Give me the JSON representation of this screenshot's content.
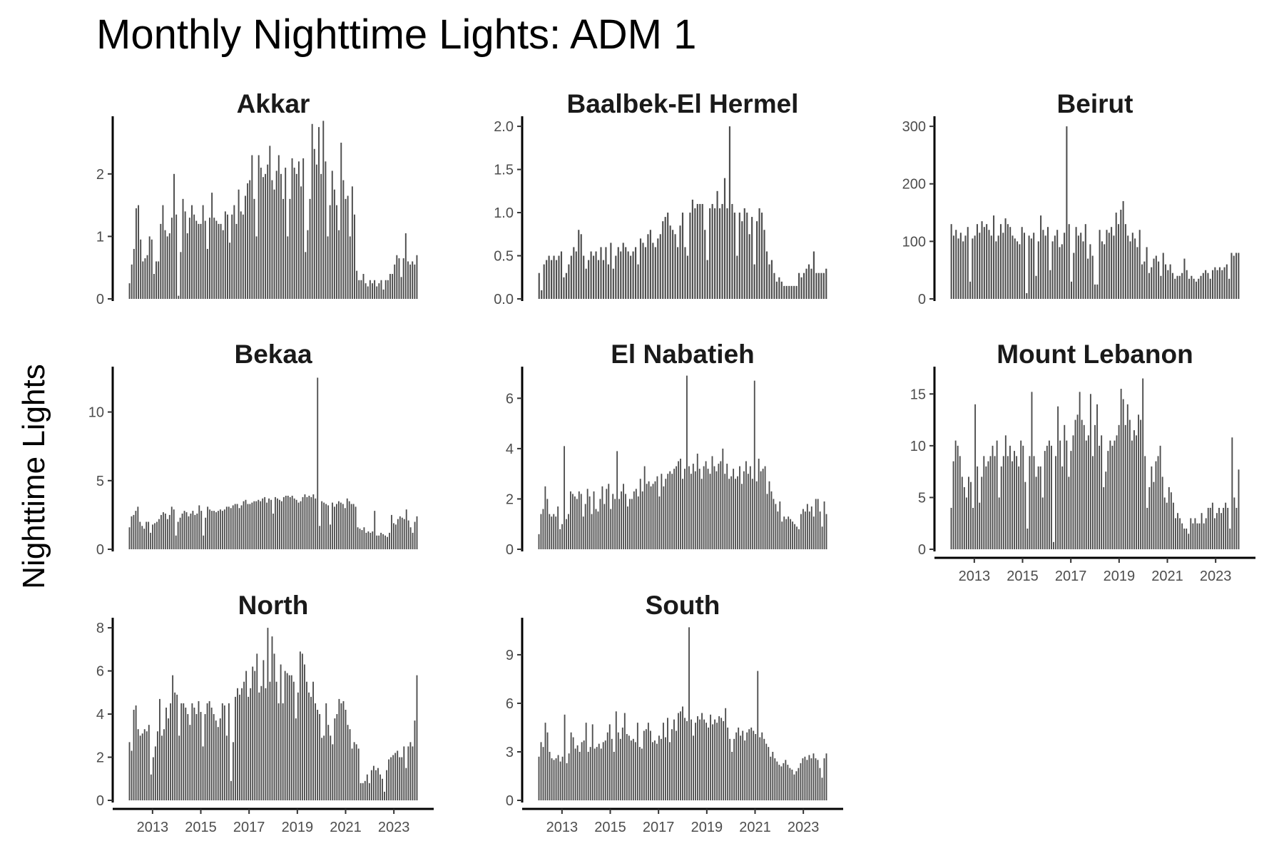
{
  "chart_data": {
    "type": "bar",
    "title": "Monthly Nighttime Lights: ADM 1",
    "ylabel": "Nighttime Lights",
    "xlabel": "",
    "x_start": "2012-01",
    "x_end": "2024-01",
    "x_ticks": [
      "2013",
      "2015",
      "2017",
      "2019",
      "2021",
      "2023"
    ],
    "bar_color": "#4d4d4d",
    "grid": false,
    "panels": [
      {
        "name": "Akkar",
        "yticks": [
          0,
          1,
          2
        ],
        "ylim": [
          0,
          2.9
        ],
        "values": [
          0.25,
          0.55,
          0.8,
          1.45,
          1.5,
          0.95,
          0.6,
          0.65,
          0.7,
          1.0,
          0.95,
          0.4,
          0.6,
          0.6,
          1.2,
          1.5,
          1.1,
          1.0,
          1.05,
          1.3,
          2.0,
          1.35,
          0.05,
          0.75,
          1.6,
          1.4,
          1.05,
          1.3,
          1.5,
          1.35,
          1.25,
          1.2,
          1.2,
          1.5,
          1.25,
          0.8,
          1.3,
          1.7,
          1.3,
          1.25,
          1.2,
          1.2,
          1.1,
          1.4,
          1.35,
          0.9,
          1.35,
          1.5,
          1.2,
          1.75,
          1.4,
          1.35,
          1.65,
          1.85,
          1.9,
          2.3,
          1.6,
          1.0,
          2.3,
          2.1,
          1.95,
          2.0,
          2.15,
          2.45,
          1.9,
          1.75,
          2.05,
          2.3,
          2.0,
          1.6,
          2.1,
          1.0,
          1.6,
          2.25,
          2.1,
          2.0,
          2.2,
          1.8,
          2.25,
          0.75,
          1.1,
          1.6,
          2.8,
          2.4,
          2.15,
          2.75,
          2.0,
          2.85,
          2.2,
          1.0,
          1.5,
          2.05,
          1.75,
          1.5,
          1.1,
          2.5,
          1.9,
          1.6,
          1.65,
          1.0,
          1.8,
          1.35,
          0.45,
          0.3,
          0.3,
          0.4,
          0.25,
          0.2,
          0.3,
          0.25,
          0.3,
          0.2,
          0.25,
          0.3,
          0.15,
          0.3,
          0.3,
          0.4,
          0.4,
          0.55,
          0.7,
          0.65,
          0.35,
          0.65,
          1.05,
          0.6,
          0.55,
          0.6,
          0.55,
          0.7
        ]
      },
      {
        "name": "Baalbek-El Hermel",
        "yticks": [
          0,
          0.5,
          1,
          1.5,
          2
        ],
        "ytick_labels": [
          "0.0",
          "0.5",
          "1.0",
          "1.5",
          "2.0"
        ],
        "ylim": [
          0,
          2.1
        ],
        "values": [
          0.3,
          0.1,
          0.4,
          0.45,
          0.5,
          0.45,
          0.5,
          0.45,
          0.5,
          0.55,
          0.25,
          0.3,
          0.4,
          0.5,
          0.6,
          0.55,
          0.8,
          0.75,
          0.5,
          0.35,
          0.45,
          0.55,
          0.5,
          0.55,
          0.45,
          0.6,
          0.45,
          0.6,
          0.4,
          0.65,
          0.35,
          0.5,
          0.6,
          0.55,
          0.65,
          0.6,
          0.55,
          0.5,
          0.55,
          0.6,
          0.4,
          0.7,
          0.65,
          0.6,
          0.75,
          0.8,
          0.65,
          0.6,
          0.7,
          0.75,
          0.9,
          0.95,
          1.0,
          0.85,
          0.8,
          0.75,
          0.6,
          0.85,
          1.0,
          0.6,
          0.5,
          1.0,
          1.15,
          1.05,
          1.1,
          1.1,
          1.1,
          0.8,
          0.45,
          1.05,
          1.1,
          1.05,
          1.25,
          1.05,
          1.1,
          1.4,
          1.05,
          2.0,
          1.1,
          1.0,
          0.5,
          1.0,
          0.9,
          1.05,
          1.0,
          0.75,
          0.95,
          0.4,
          0.9,
          1.05,
          1.0,
          0.8,
          0.55,
          0.4,
          0.45,
          0.3,
          0.2,
          0.25,
          0.2,
          0.15,
          0.15,
          0.15,
          0.15,
          0.15,
          0.15,
          0.3,
          0.25,
          0.3,
          0.35,
          0.4,
          0.35,
          0.55,
          0.3,
          0.3,
          0.3,
          0.3,
          0.35
        ]
      },
      {
        "name": "Beirut",
        "yticks": [
          0,
          100,
          200,
          300
        ],
        "ylim": [
          0,
          315
        ],
        "values": [
          130,
          110,
          120,
          105,
          115,
          100,
          110,
          125,
          30,
          105,
          110,
          130,
          115,
          135,
          125,
          130,
          120,
          110,
          145,
          100,
          110,
          130,
          115,
          140,
          130,
          125,
          110,
          105,
          100,
          95,
          125,
          115,
          10,
          110,
          105,
          115,
          40,
          100,
          145,
          120,
          110,
          125,
          50,
          100,
          110,
          120,
          90,
          95,
          115,
          300,
          130,
          30,
          80,
          125,
          110,
          115,
          100,
          130,
          70,
          95,
          75,
          25,
          25,
          120,
          100,
          95,
          120,
          115,
          125,
          110,
          150,
          130,
          155,
          170,
          130,
          110,
          100,
          115,
          105,
          90,
          120,
          60,
          65,
          90,
          45,
          55,
          70,
          75,
          65,
          40,
          80,
          60,
          50,
          60,
          45,
          35,
          40,
          40,
          45,
          70,
          50,
          35,
          40,
          35,
          30,
          35,
          40,
          45,
          50,
          45,
          35,
          50,
          55,
          50,
          55,
          50,
          55,
          60,
          35,
          80,
          75,
          80,
          80
        ]
      },
      {
        "name": "Bekaa",
        "yticks": [
          0,
          5,
          10
        ],
        "ylim": [
          0,
          13.2
        ],
        "values": [
          1.6,
          2.4,
          2.5,
          2.8,
          3.1,
          2.0,
          1.7,
          1.5,
          2.0,
          2.0,
          1.2,
          1.8,
          1.9,
          2.0,
          2.2,
          2.5,
          2.7,
          2.6,
          2.2,
          2.5,
          3.1,
          2.9,
          1.0,
          2.0,
          2.3,
          2.6,
          2.8,
          2.7,
          2.4,
          2.6,
          2.8,
          2.5,
          2.6,
          3.2,
          2.8,
          1.0,
          2.3,
          3.1,
          2.9,
          2.8,
          2.8,
          2.7,
          2.8,
          2.9,
          2.8,
          2.9,
          3.1,
          3.1,
          3.0,
          3.2,
          3.3,
          3.3,
          3.0,
          3.2,
          3.5,
          3.6,
          3.3,
          3.3,
          3.4,
          3.5,
          3.5,
          3.6,
          3.5,
          3.7,
          3.8,
          3.4,
          3.7,
          3.6,
          2.6,
          3.8,
          3.7,
          3.6,
          3.5,
          3.8,
          3.9,
          3.9,
          3.8,
          3.9,
          3.7,
          3.6,
          3.4,
          3.5,
          3.8,
          4.0,
          3.8,
          3.9,
          3.8,
          4.0,
          3.7,
          12.5,
          1.7,
          3.5,
          3.4,
          3.3,
          3.2,
          1.8,
          3.4,
          3.1,
          3.3,
          3.5,
          3.4,
          3.3,
          3.0,
          3.7,
          3.5,
          3.3,
          3.3,
          3.1,
          1.6,
          1.5,
          1.4,
          1.6,
          1.2,
          1.3,
          1.2,
          1.3,
          2.8,
          1.0,
          1.0,
          1.2,
          1.1,
          1.0,
          0.9,
          1.2,
          2.5,
          1.9,
          1.8,
          2.2,
          2.4,
          2.3,
          2.2,
          2.9,
          2.1,
          1.6,
          1.2,
          2.0,
          2.4
        ]
      },
      {
        "name": "El Nabatieh",
        "yticks": [
          0,
          2,
          4,
          6
        ],
        "ylim": [
          0,
          7.2
        ],
        "values": [
          0.6,
          1.4,
          1.6,
          2.5,
          2.0,
          1.4,
          1.3,
          1.4,
          1.3,
          1.7,
          0.8,
          1.0,
          4.1,
          1.2,
          1.4,
          2.3,
          2.2,
          2.1,
          2.0,
          2.3,
          2.2,
          1.3,
          1.8,
          2.4,
          2.1,
          1.4,
          2.3,
          1.6,
          1.5,
          2.0,
          2.5,
          1.8,
          2.4,
          2.6,
          1.6,
          2.2,
          2.0,
          3.9,
          2.0,
          2.3,
          2.6,
          2.2,
          1.7,
          2.0,
          2.0,
          2.3,
          2.4,
          2.1,
          2.8,
          2.3,
          3.3,
          2.6,
          2.7,
          2.5,
          2.6,
          2.7,
          2.9,
          2.1,
          3.0,
          2.5,
          2.8,
          3.0,
          3.1,
          3.0,
          3.2,
          3.3,
          3.5,
          3.6,
          2.8,
          3.2,
          6.9,
          3.3,
          3.0,
          3.4,
          3.1,
          3.8,
          3.2,
          2.8,
          3.3,
          3.5,
          3.2,
          3.0,
          3.7,
          3.3,
          3.1,
          3.4,
          3.5,
          4.0,
          3.0,
          3.4,
          2.8,
          2.9,
          3.2,
          2.8,
          2.9,
          3.3,
          2.6,
          3.1,
          3.5,
          3.0,
          3.3,
          2.8,
          6.7,
          2.7,
          3.6,
          3.1,
          3.2,
          3.3,
          2.2,
          2.7,
          2.3,
          2.0,
          1.8,
          1.5,
          1.9,
          1.1,
          1.3,
          1.2,
          1.3,
          1.2,
          1.1,
          1.0,
          0.9,
          0.8,
          1.4,
          1.6,
          1.5,
          1.8,
          1.5,
          1.7,
          1.3,
          2.0,
          2.0,
          1.5,
          0.9,
          1.9,
          1.4
        ]
      },
      {
        "name": "Mount Lebanon",
        "yticks": [
          0,
          5,
          10,
          15
        ],
        "ylim": [
          0,
          17.5
        ],
        "values": [
          4.0,
          8.5,
          10.5,
          10.0,
          9.0,
          7.0,
          6.0,
          5.0,
          7.0,
          6.5,
          4.0,
          14.0,
          8.0,
          4.5,
          7.0,
          9.0,
          8.0,
          8.5,
          9.0,
          10.0,
          9.0,
          10.5,
          5.0,
          8.0,
          9.0,
          11.0,
          9.0,
          10.0,
          8.5,
          9.5,
          9.0,
          8.0,
          10.5,
          10.0,
          6.5,
          2.0,
          9.0,
          15.2,
          9.0,
          7.0,
          8.0,
          8.0,
          5.0,
          9.5,
          10.0,
          10.5,
          10.0,
          0.7,
          9.0,
          13.8,
          10.5,
          8.0,
          12.0,
          10.5,
          7.0,
          9.5,
          11.0,
          12.5,
          13.0,
          15.2,
          12.5,
          12.0,
          10.5,
          11.0,
          15.0,
          9.0,
          12.0,
          14.0,
          10.0,
          11.0,
          6.0,
          7.5,
          9.5,
          10.5,
          10.0,
          10.5,
          11.0,
          12.0,
          15.5,
          14.5,
          12.0,
          14.0,
          12.5,
          10.5,
          11.5,
          11.0,
          13.0,
          12.5,
          16.5,
          9.0,
          4.0,
          6.0,
          8.0,
          6.5,
          8.5,
          9.0,
          10.0,
          7.0,
          5.0,
          4.5,
          6.0,
          5.5,
          4.5,
          3.0,
          3.5,
          3.0,
          2.5,
          2.0,
          2.0,
          1.5,
          3.0,
          2.5,
          3.0,
          2.5,
          2.5,
          3.5,
          2.5,
          3.0,
          4.0,
          4.0,
          4.5,
          3.0,
          3.5,
          4.0,
          3.5,
          4.0,
          4.5,
          4.0,
          2.0,
          10.8,
          5.0,
          4.0,
          7.7
        ]
      },
      {
        "name": "North",
        "yticks": [
          0,
          2,
          4,
          6,
          8
        ],
        "ylim": [
          0,
          8.4
        ],
        "values": [
          2.7,
          2.3,
          4.2,
          4.4,
          3.3,
          3.0,
          3.1,
          3.3,
          3.2,
          3.5,
          1.2,
          2.0,
          2.5,
          3.2,
          4.7,
          3.0,
          3.3,
          4.3,
          3.8,
          4.5,
          5.8,
          5.0,
          4.9,
          3.0,
          4.5,
          4.5,
          4.3,
          4.0,
          3.5,
          4.5,
          4.3,
          4.0,
          4.6,
          4.1,
          2.5,
          4.0,
          4.5,
          4.6,
          4.3,
          4.0,
          3.7,
          3.4,
          3.8,
          4.5,
          4.4,
          3.0,
          4.5,
          0.9,
          2.7,
          4.8,
          5.2,
          4.9,
          5.2,
          5.5,
          6.0,
          4.8,
          5.2,
          6.2,
          6.0,
          6.8,
          5.0,
          5.3,
          6.5,
          5.2,
          8.0,
          5.5,
          7.6,
          6.8,
          5.5,
          4.5,
          6.3,
          4.5,
          6.0,
          5.9,
          5.8,
          5.8,
          5.5,
          3.8,
          5.0,
          6.9,
          6.8,
          6.3,
          5.5,
          5.0,
          4.8,
          5.5,
          4.5,
          4.2,
          4.0,
          2.9,
          3.0,
          4.5,
          3.5,
          3.0,
          2.6,
          3.8,
          4.0,
          4.7,
          4.5,
          4.6,
          4.2,
          3.5,
          3.3,
          2.4,
          2.7,
          2.6,
          2.4,
          0.8,
          0.8,
          0.9,
          1.2,
          0.8,
          1.4,
          1.6,
          1.4,
          1.5,
          1.2,
          1.0,
          0.4,
          1.4,
          1.9,
          2.0,
          2.1,
          2.2,
          2.3,
          2.0,
          2.0,
          2.5,
          1.5,
          2.5,
          2.7,
          2.5,
          3.7,
          5.8
        ]
      },
      {
        "name": "South",
        "yticks": [
          0,
          3,
          6,
          9
        ],
        "ylim": [
          0,
          11.2
        ],
        "values": [
          2.7,
          3.6,
          3.3,
          4.8,
          4.2,
          3.0,
          2.6,
          2.5,
          2.6,
          2.8,
          2.4,
          2.7,
          5.3,
          2.3,
          2.9,
          4.2,
          3.9,
          3.2,
          3.4,
          3.0,
          3.6,
          3.7,
          4.8,
          3.0,
          3.3,
          4.7,
          3.2,
          3.3,
          3.5,
          3.2,
          3.6,
          3.7,
          4.2,
          4.7,
          3.8,
          3.0,
          5.5,
          4.2,
          3.8,
          4.5,
          5.4,
          4.1,
          4.0,
          3.7,
          3.8,
          3.6,
          4.8,
          3.3,
          3.2,
          4.3,
          4.4,
          4.8,
          4.3,
          3.6,
          3.7,
          3.5,
          4.0,
          3.8,
          4.8,
          3.9,
          5.1,
          3.6,
          4.4,
          5.0,
          4.3,
          5.4,
          5.5,
          5.8,
          5.1,
          4.9,
          10.7,
          5.0,
          4.0,
          4.8,
          5.2,
          5.0,
          5.4,
          5.0,
          4.8,
          4.5,
          5.3,
          4.7,
          5.0,
          4.8,
          5.2,
          5.1,
          4.9,
          5.7,
          4.5,
          3.8,
          3.0,
          3.8,
          4.2,
          4.5,
          4.0,
          4.3,
          3.7,
          4.2,
          4.4,
          4.5,
          4.3,
          4.1,
          8.0,
          3.9,
          4.2,
          3.8,
          3.5,
          3.3,
          2.7,
          3.0,
          2.6,
          2.4,
          2.2,
          2.1,
          2.3,
          2.5,
          2.2,
          2.0,
          1.9,
          1.6,
          1.8,
          2.0,
          2.3,
          2.6,
          2.7,
          2.5,
          2.8,
          2.6,
          2.9,
          2.6,
          2.5,
          2.0,
          1.4,
          2.6,
          2.9
        ]
      }
    ]
  }
}
